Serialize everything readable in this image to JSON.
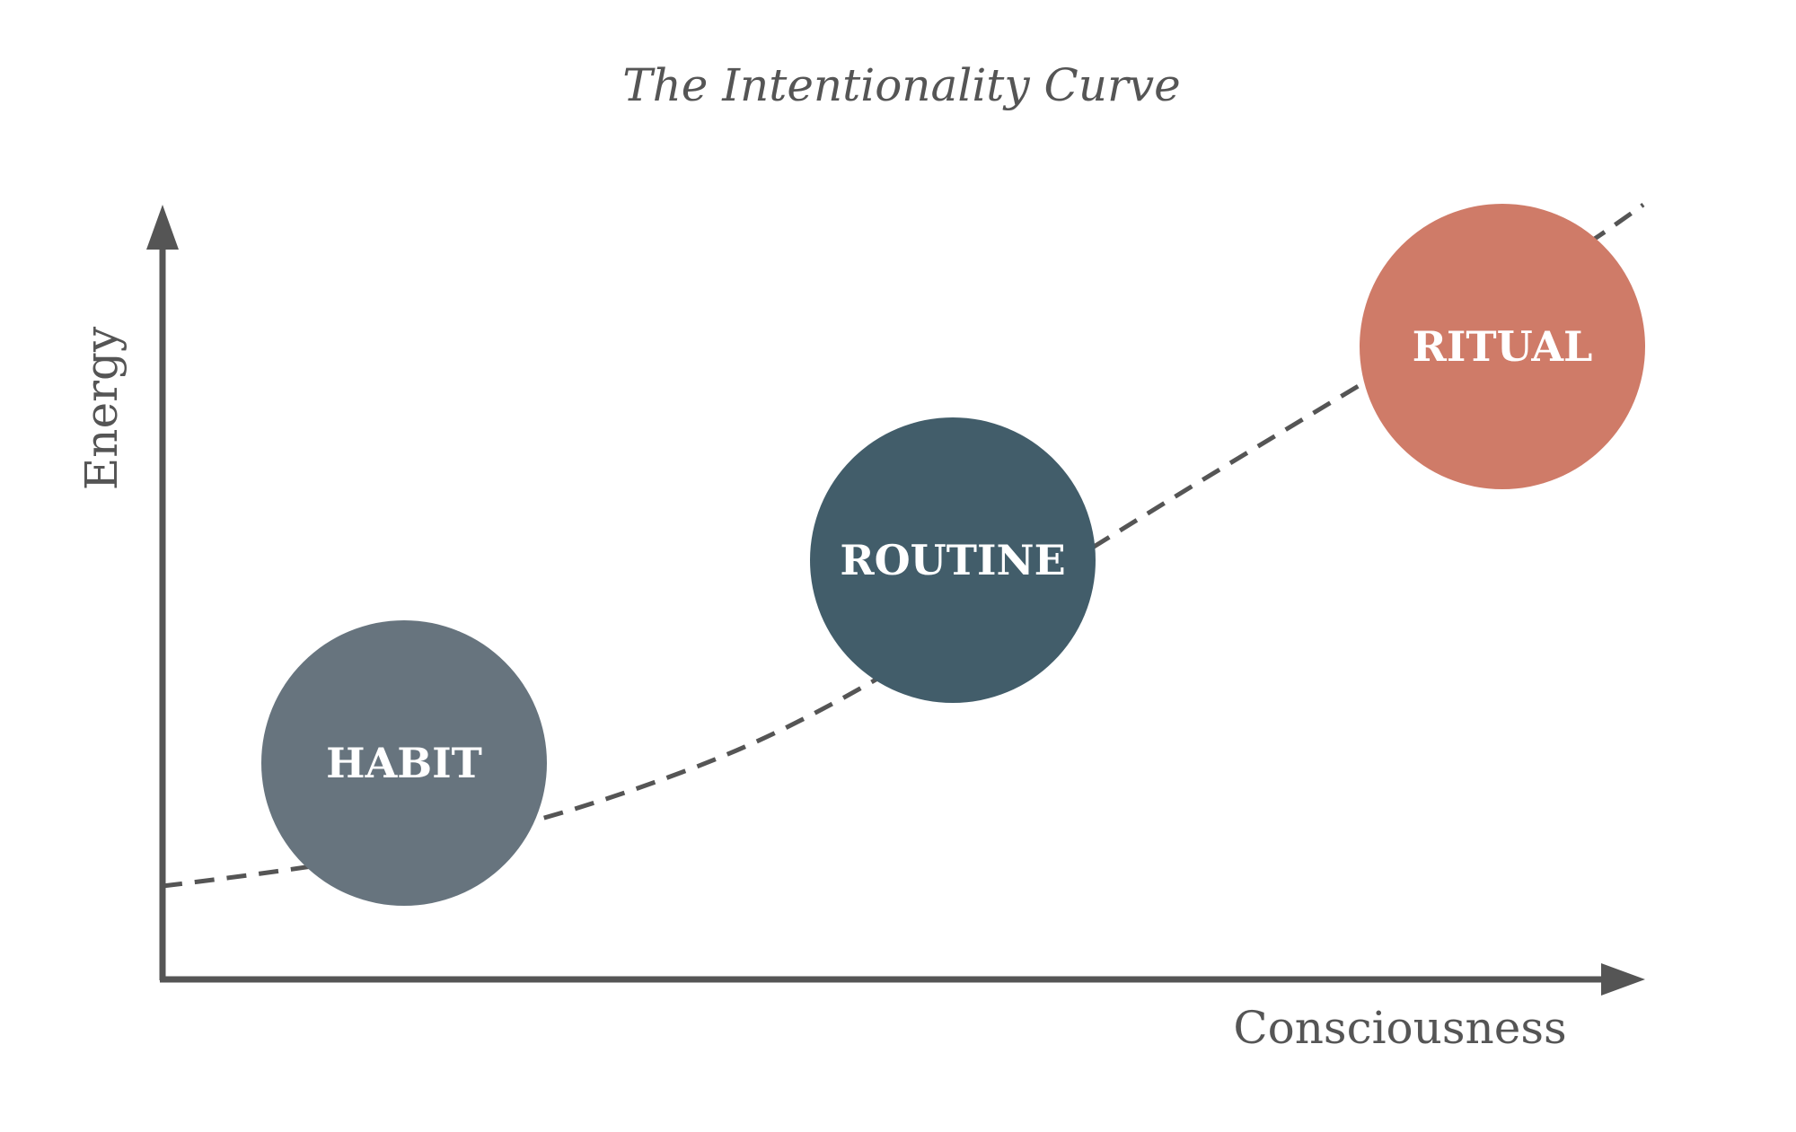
{
  "title": "The Intentionality Curve",
  "axes": {
    "x_label": "Consciousness",
    "y_label": "Energy"
  },
  "nodes": [
    {
      "label": "HABIT",
      "color": "#67747e"
    },
    {
      "label": "ROUTINE",
      "color": "#425d6a"
    },
    {
      "label": "RITUAL",
      "color": "#cf7b68"
    }
  ],
  "colors": {
    "axis": "#555555",
    "curve": "#555555",
    "text": "#555555"
  },
  "curve_style": "dashed"
}
